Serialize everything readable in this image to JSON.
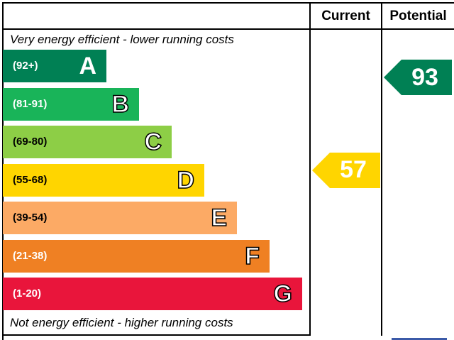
{
  "headers": {
    "current": "Current",
    "potential": "Potential"
  },
  "captions": {
    "top": "Very energy efficient - lower running costs",
    "bottom": "Not energy efficient - higher running costs"
  },
  "chart_data": {
    "type": "bar",
    "categories": [
      "A",
      "B",
      "C",
      "D",
      "E",
      "F",
      "G"
    ],
    "ranges": [
      "(92+)",
      "(81-91)",
      "(69-80)",
      "(55-68)",
      "(39-54)",
      "(21-38)",
      "(1-20)"
    ],
    "colors": [
      "#008054",
      "#19b459",
      "#8dce46",
      "#ffd500",
      "#fcaa65",
      "#ef8023",
      "#e9153b"
    ],
    "current": {
      "value": 57,
      "band": "D",
      "color": "#ffd500"
    },
    "potential": {
      "value": 93,
      "band": "A",
      "color": "#008054"
    }
  },
  "labels": {
    "current_value": "57",
    "potential_value": "93"
  }
}
